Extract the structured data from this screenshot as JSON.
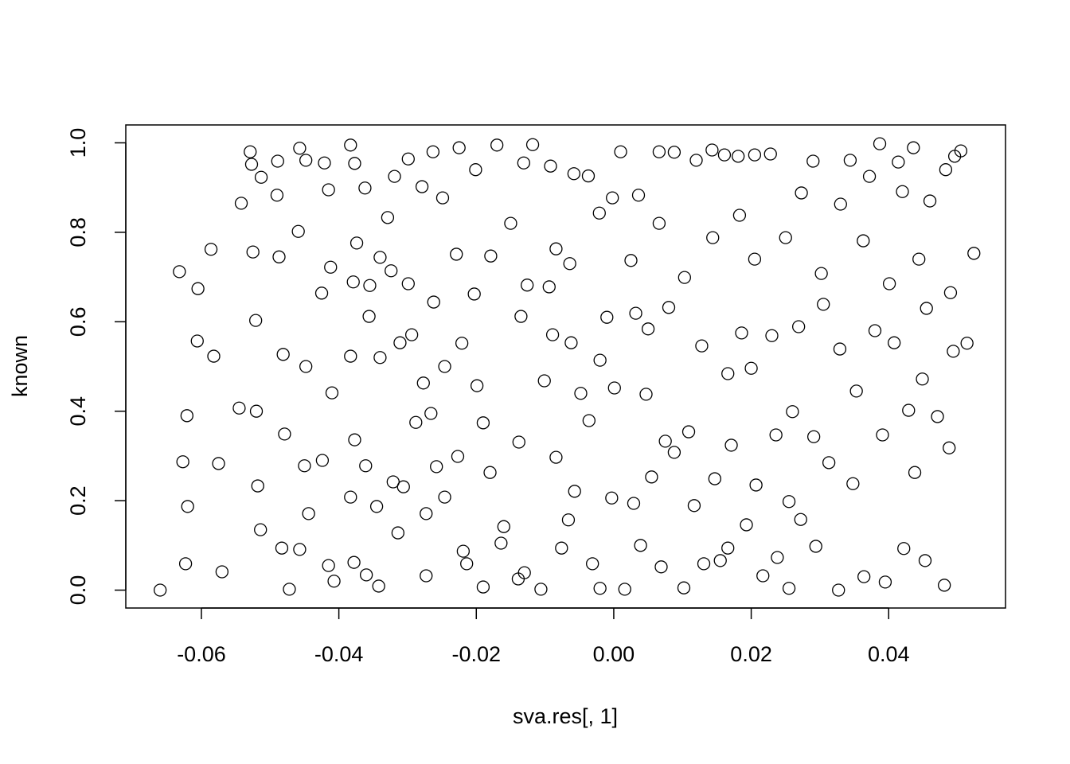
{
  "chart_data": {
    "type": "scatter",
    "x_label": "sva.res[, 1]",
    "y_label": "known",
    "xlim": [
      -0.071,
      0.057
    ],
    "ylim": [
      -0.04,
      1.04
    ],
    "xticks": [
      -0.06,
      -0.04,
      -0.02,
      {
        "value": 0,
        "label": "0.00"
      },
      0.02,
      0.04
    ],
    "yticks": [
      {
        "value": 0,
        "label": "0.0"
      },
      0.2,
      0.4,
      0.6,
      0.8,
      {
        "value": 1,
        "label": "1.0"
      }
    ],
    "grid": false,
    "color": "#000000",
    "x": [
      -0.066,
      -0.0632,
      -0.0627,
      -0.0621,
      -0.062,
      -0.0623,
      -0.0605,
      -0.0606,
      -0.0586,
      -0.0582,
      -0.0575,
      -0.057,
      -0.0545,
      -0.0529,
      -0.0527,
      -0.0513,
      -0.0542,
      -0.0525,
      -0.0521,
      -0.052,
      -0.0518,
      -0.0514,
      -0.0489,
      -0.049,
      -0.0487,
      -0.0481,
      -0.0479,
      -0.0483,
      -0.0472,
      -0.0457,
      -0.0448,
      -0.0459,
      -0.0448,
      -0.045,
      -0.0444,
      -0.0457,
      -0.0421,
      -0.0415,
      -0.0412,
      -0.0425,
      -0.041,
      -0.0424,
      -0.0415,
      -0.0407,
      -0.0383,
      -0.0377,
      -0.0374,
      -0.0379,
      -0.0383,
      -0.0377,
      -0.0383,
      -0.0378,
      -0.0362,
      -0.0355,
      -0.0356,
      -0.0361,
      -0.036,
      -0.034,
      -0.034,
      -0.0345,
      -0.0342,
      -0.0319,
      -0.0329,
      -0.0324,
      -0.0321,
      -0.0311,
      -0.0306,
      -0.0314,
      -0.0299,
      -0.0299,
      -0.0294,
      -0.0288,
      -0.0279,
      -0.0277,
      -0.0273,
      -0.0273,
      -0.0263,
      -0.0262,
      -0.0266,
      -0.0258,
      -0.0249,
      -0.0246,
      -0.0246,
      -0.0225,
      -0.0229,
      -0.0221,
      -0.0227,
      -0.0219,
      -0.0214,
      -0.0201,
      -0.0203,
      -0.0199,
      -0.019,
      -0.019,
      -0.0179,
      -0.018,
      -0.017,
      -0.0164,
      -0.016,
      -0.015,
      -0.0138,
      -0.0139,
      -0.0135,
      -0.0131,
      -0.0126,
      -0.013,
      -0.0118,
      -0.0106,
      -0.0101,
      -0.0094,
      -0.0092,
      -0.0084,
      -0.0084,
      -0.0089,
      -0.0076,
      -0.0062,
      -0.0058,
      -0.0064,
      -0.0066,
      -0.0057,
      -0.0048,
      -0.0037,
      -0.0036,
      -0.0031,
      -0.002,
      -0.0021,
      -0.002,
      -0.001,
      -0.0002,
      -0.0003,
      0.0001,
      0.001,
      0.0016,
      0.0025,
      0.0029,
      0.0032,
      0.0036,
      0.0039,
      0.0047,
      0.005,
      0.0055,
      0.0066,
      0.0066,
      0.0069,
      0.0075,
      0.008,
      0.0088,
      0.0088,
      0.0102,
      0.0103,
      0.0109,
      0.0117,
      0.012,
      0.0128,
      0.0131,
      0.0143,
      0.0144,
      0.0147,
      0.0155,
      0.0161,
      0.0166,
      0.0171,
      0.0166,
      0.0181,
      0.0183,
      0.0186,
      0.0193,
      0.02,
      0.0205,
      0.0205,
      0.0207,
      0.0217,
      0.0228,
      0.023,
      0.0236,
      0.0238,
      0.025,
      0.0255,
      0.0255,
      0.026,
      0.0273,
      0.0269,
      0.0272,
      0.029,
      0.0291,
      0.0294,
      0.0302,
      0.0305,
      0.0313,
      0.0327,
      0.0329,
      0.033,
      0.0344,
      0.0348,
      0.0353,
      0.0363,
      0.0364,
      0.0372,
      0.038,
      0.0387,
      0.0391,
      0.0395,
      0.0401,
      0.0408,
      0.0414,
      0.042,
      0.0422,
      0.0429,
      0.0436,
      0.0438,
      0.0444,
      0.0449,
      0.0453,
      0.0455,
      0.046,
      0.0471,
      0.0481,
      0.0483,
      0.0488,
      0.0496,
      0.0505,
      0.0514,
      0.0524,
      0.049,
      0.0494
    ],
    "y": [
      0,
      0.712,
      0.287,
      0.39,
      0.187,
      0.059,
      0.674,
      0.557,
      0.762,
      0.523,
      0.283,
      0.041,
      0.407,
      0.98,
      0.952,
      0.923,
      0.865,
      0.756,
      0.603,
      0.4,
      0.233,
      0.135,
      0.959,
      0.883,
      0.745,
      0.527,
      0.349,
      0.094,
      0.002,
      0.988,
      0.961,
      0.802,
      0.5,
      0.278,
      0.171,
      0.091,
      0.955,
      0.895,
      0.722,
      0.664,
      0.441,
      0.29,
      0.055,
      0.02,
      0.995,
      0.954,
      0.776,
      0.689,
      0.523,
      0.336,
      0.208,
      0.062,
      0.899,
      0.681,
      0.612,
      0.278,
      0.034,
      0.744,
      0.52,
      0.187,
      0.009,
      0.925,
      0.833,
      0.714,
      0.242,
      0.553,
      0.231,
      0.128,
      0.964,
      0.685,
      0.571,
      0.375,
      0.902,
      0.463,
      0.171,
      0.032,
      0.98,
      0.644,
      0.395,
      0.276,
      0.877,
      0.208,
      0.5,
      0.989,
      0.751,
      0.552,
      0.299,
      0.087,
      0.059,
      0.94,
      0.662,
      0.457,
      0.374,
      0.007,
      0.747,
      0.263,
      0.995,
      0.105,
      0.142,
      0.82,
      0.331,
      0.025,
      0.612,
      0.955,
      0.682,
      0.039,
      0.996,
      0.002,
      0.468,
      0.678,
      0.948,
      0.763,
      0.297,
      0.571,
      0.094,
      0.553,
      0.931,
      0.73,
      0.157,
      0.221,
      0.44,
      0.926,
      0.379,
      0.059,
      0.004,
      0.843,
      0.514,
      0.61,
      0.877,
      0.206,
      0.452,
      0.98,
      0.002,
      0.737,
      0.194,
      0.619,
      0.883,
      0.1,
      0.438,
      0.584,
      0.253,
      0.98,
      0.82,
      0.052,
      0.333,
      0.632,
      0.979,
      0.308,
      0.005,
      0.699,
      0.354,
      0.189,
      0.961,
      0.546,
      0.059,
      0.984,
      0.788,
      0.249,
      0.066,
      0.973,
      0.484,
      0.324,
      0.094,
      0.97,
      0.838,
      0.575,
      0.146,
      0.496,
      0.973,
      0.74,
      0.235,
      0.032,
      0.975,
      0.569,
      0.347,
      0.073,
      0.788,
      0.004,
      0.198,
      0.399,
      0.888,
      0.589,
      0.158,
      0.959,
      0.343,
      0.098,
      0.708,
      0.639,
      0.285,
      0,
      0.539,
      0.863,
      0.961,
      0.238,
      0.445,
      0.781,
      0.03,
      0.925,
      0.58,
      0.998,
      0.347,
      0.018,
      0.685,
      0.553,
      0.957,
      0.891,
      0.093,
      0.402,
      0.989,
      0.263,
      0.74,
      0.472,
      0.066,
      0.63,
      0.87,
      0.388,
      0.011,
      0.94,
      0.318,
      0.97,
      0.982,
      0.552,
      0.753,
      0.665,
      0.534
    ]
  }
}
